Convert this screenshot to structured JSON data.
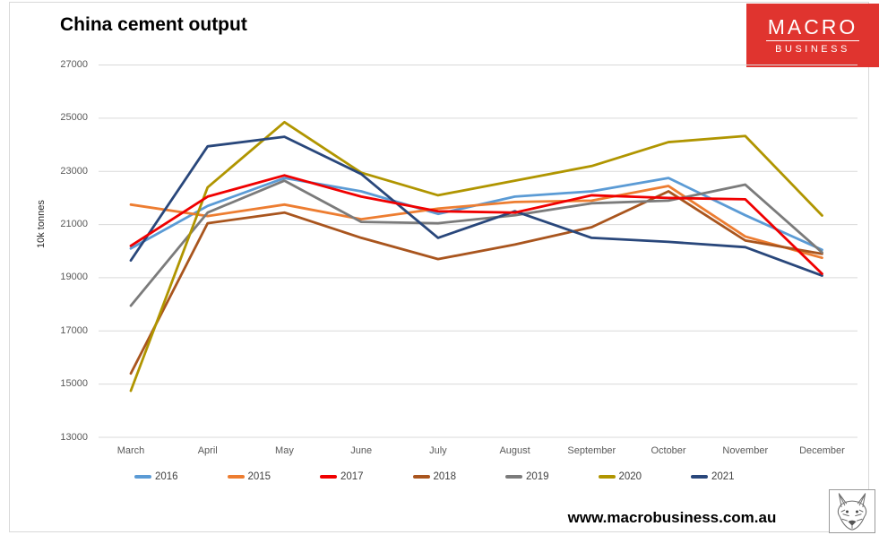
{
  "title": "China cement output",
  "logo": {
    "line1": "MACRO",
    "line2": "BUSINESS",
    "bg_color": "#e0342f",
    "text_color": "#ffffff"
  },
  "footer": {
    "website": "www.macrobusiness.com.au"
  },
  "fox_badge": {
    "icon": "fox-sketch-icon"
  },
  "chart_data": {
    "type": "line",
    "title": "China cement output",
    "xlabel": "",
    "ylabel": "10k tonnes",
    "ylim": [
      13000,
      27000
    ],
    "ytick_step": 2000,
    "grid": true,
    "grid_color": "#d9d9d9",
    "legend_position": "bottom",
    "categories": [
      "March",
      "April",
      "May",
      "June",
      "July",
      "August",
      "September",
      "October",
      "November",
      "December"
    ],
    "series": [
      {
        "name": "2016",
        "color": "#5B9BD5",
        "values": [
          20100,
          21700,
          22750,
          22250,
          21400,
          22050,
          22250,
          22750,
          21350,
          20050
        ]
      },
      {
        "name": "2015",
        "color": "#ED7D31",
        "values": [
          21750,
          21320,
          21750,
          21200,
          21600,
          21850,
          21900,
          22450,
          20550,
          19750
        ]
      },
      {
        "name": "2017",
        "color": "#F00000",
        "values": [
          20200,
          22050,
          22850,
          22050,
          21500,
          21450,
          22100,
          22000,
          21950,
          19150
        ]
      },
      {
        "name": "2018",
        "color": "#A9551E",
        "values": [
          15400,
          21050,
          21450,
          20500,
          19700,
          20250,
          20900,
          22250,
          20400,
          19900
        ]
      },
      {
        "name": "2019",
        "color": "#7B7B7B",
        "values": [
          17950,
          21450,
          22650,
          21100,
          21050,
          21350,
          21800,
          21900,
          22500,
          19950
        ]
      },
      {
        "name": "2020",
        "color": "#B09500",
        "values": [
          14750,
          22400,
          24850,
          22950,
          22100,
          22650,
          23200,
          24100,
          24330,
          21340
        ]
      },
      {
        "name": "2021",
        "color": "#29477B",
        "values": [
          19650,
          23940,
          24300,
          22900,
          20500,
          21500,
          20500,
          20350,
          20150,
          19080
        ]
      }
    ]
  }
}
